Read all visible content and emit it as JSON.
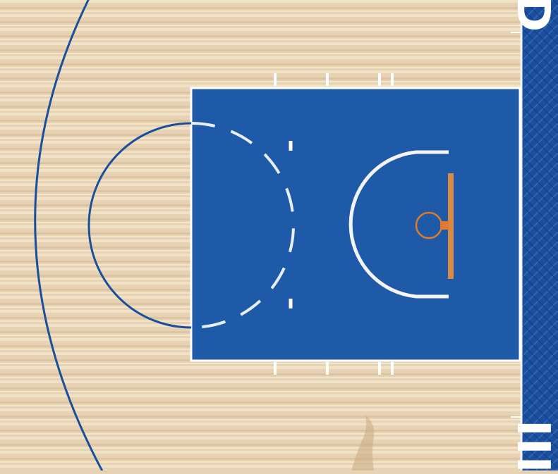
{
  "court": {
    "floor_color": "#e7d3b3",
    "plank_color_light": "#f0e0c4",
    "plank_color_dark": "#d9c09c",
    "paint_color": "#1f5aa8",
    "line_color": "#ffffff",
    "boundary_color": "#1a4f9b",
    "rim_color": "#e07a2c",
    "backboard_color": "#d88a45"
  },
  "baseline_band": {
    "color": "#1b4f9d",
    "top_text": "D",
    "bottom_text": "III"
  }
}
